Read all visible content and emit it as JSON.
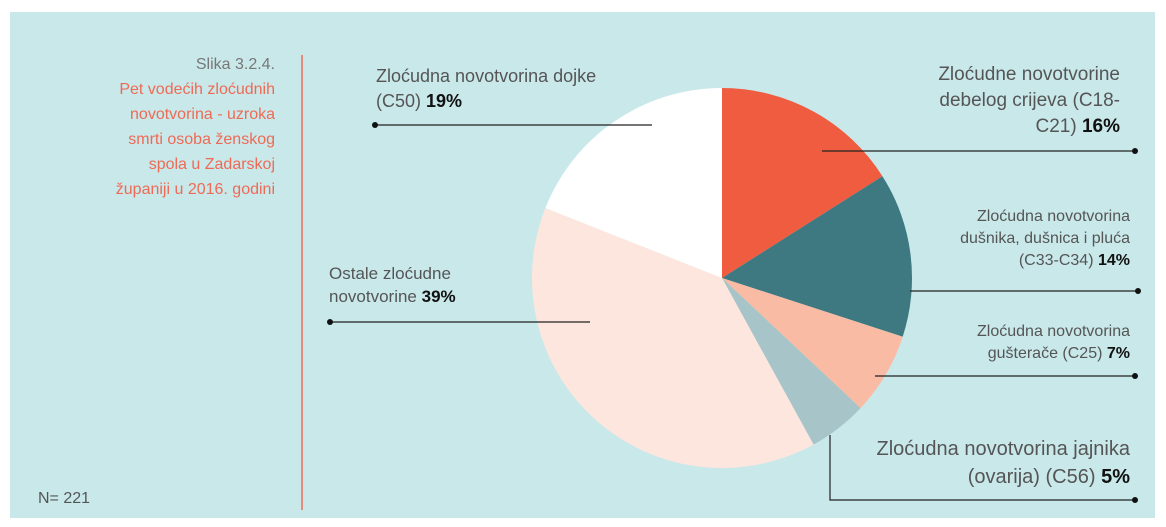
{
  "chart_data": {
    "type": "pie",
    "title": "Slika 3.2.4.",
    "subtitle": "Pet vodećih zloćudnih novotvorina - uzroka smrti osoba ženskog spola u Zadarskoj županiji u 2016. godini",
    "note": "N= 221",
    "categories": [
      "Zloćudne novotvorine debelog crijeva (C18-C21)",
      "Zloćudna novotvorina dušnika, dušnica i pluća (C33-C34)",
      "Zloćudna novotvorina gušterače (C25)",
      "Zloćudna novotvorina jajnika (ovarija) (C56)",
      "Ostale zloćudne novotvorine",
      "Zloćudna novotvorina dojke (C50)"
    ],
    "values": [
      16,
      14,
      7,
      5,
      39,
      19
    ],
    "value_labels": [
      "16%",
      "14%",
      "7%",
      "5%",
      "39%",
      "19%"
    ],
    "colors": [
      "#f05c40",
      "#3e7880",
      "#f9bba3",
      "#a7c4c8",
      "#fde6dd",
      "#ffffff"
    ]
  }
}
